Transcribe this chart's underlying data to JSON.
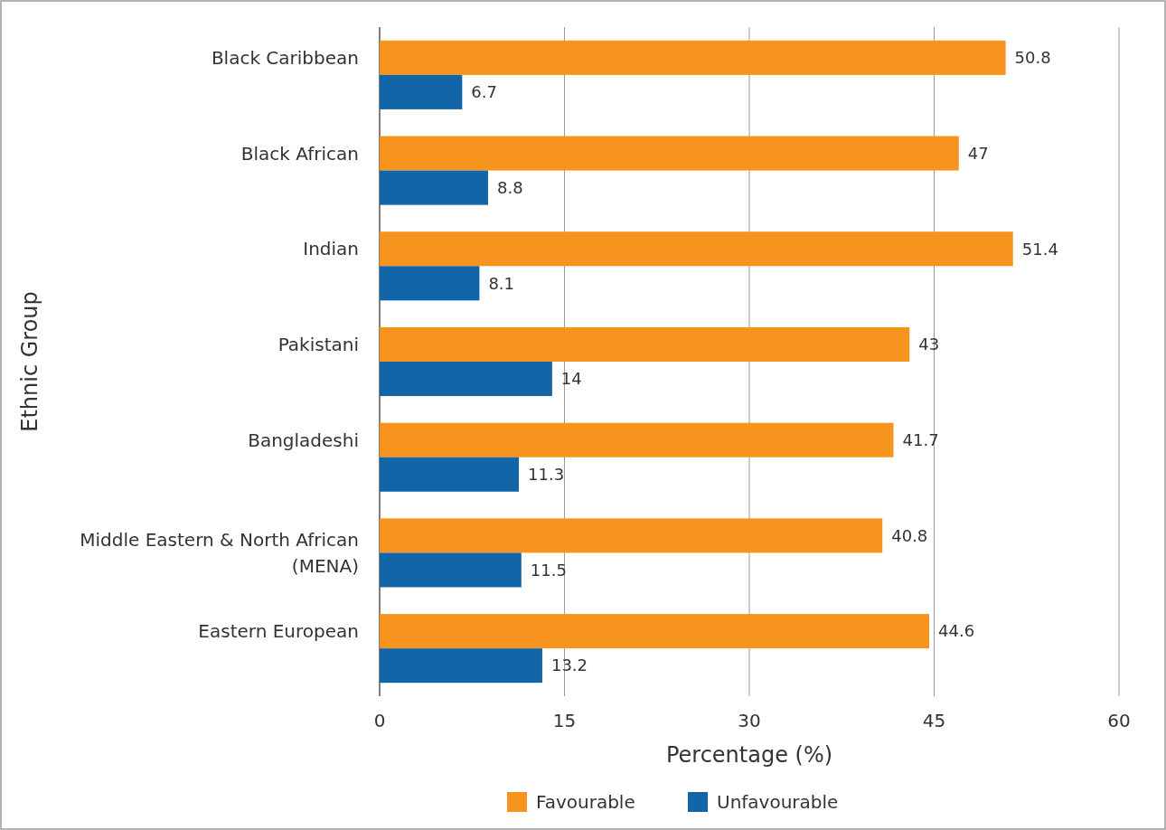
{
  "chart_data": {
    "type": "bar",
    "orientation": "horizontal",
    "xlabel": "Percentage (%)",
    "ylabel": "Ethnic Group",
    "categories": [
      "Black Caribbean",
      "Black African",
      "Indian",
      "Pakistani",
      "Bangladeshi",
      "Middle Eastern & North African (MENA)",
      "Eastern European"
    ],
    "series": [
      {
        "name": "Favourable",
        "color": "#f7941d",
        "values": [
          50.8,
          47,
          51.4,
          43,
          41.7,
          40.8,
          44.6
        ]
      },
      {
        "name": "Unfavourable",
        "color": "#1266a8",
        "values": [
          6.7,
          8.8,
          8.1,
          14,
          11.3,
          11.5,
          13.2
        ]
      }
    ],
    "xlim": [
      0,
      60
    ],
    "xticks": [
      0,
      15,
      30,
      45,
      60
    ],
    "grid": "x",
    "data_labels": true,
    "legend": "bottom"
  }
}
